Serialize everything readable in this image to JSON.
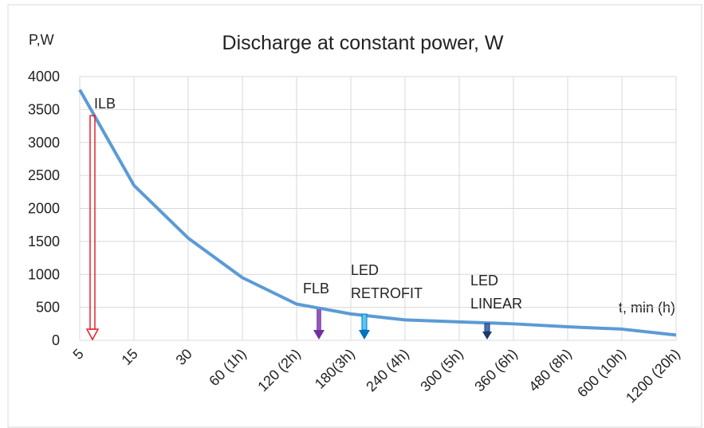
{
  "chart_data": {
    "type": "line",
    "title": "Discharge at constant power, W",
    "y_label": "P,W",
    "x_label": "t, min (h)",
    "categories": [
      "5",
      "15",
      "30",
      "60 (1h)",
      "120 (2h)",
      "180(3h)",
      "240 (4h)",
      "300 (5h)",
      "360 (6h)",
      "480 (8h)",
      "600 (10h)",
      "1200 (20h)"
    ],
    "series": [
      {
        "name": "Discharge",
        "color": "#5b9bd5",
        "values": [
          3800,
          2350,
          1550,
          950,
          550,
          400,
          310,
          280,
          250,
          205,
          170,
          80
        ]
      }
    ],
    "ylim": [
      0,
      4000
    ],
    "yticks": [
      0,
      500,
      1000,
      1500,
      2000,
      2500,
      3000,
      3500,
      4000
    ],
    "grid": true,
    "annotations": [
      {
        "lines": [
          "ILB"
        ]
      },
      {
        "lines": [
          "FLB"
        ]
      },
      {
        "lines": [
          "LED",
          "RETROFIT"
        ]
      },
      {
        "lines": [
          "LED",
          "LINEAR"
        ]
      }
    ]
  }
}
